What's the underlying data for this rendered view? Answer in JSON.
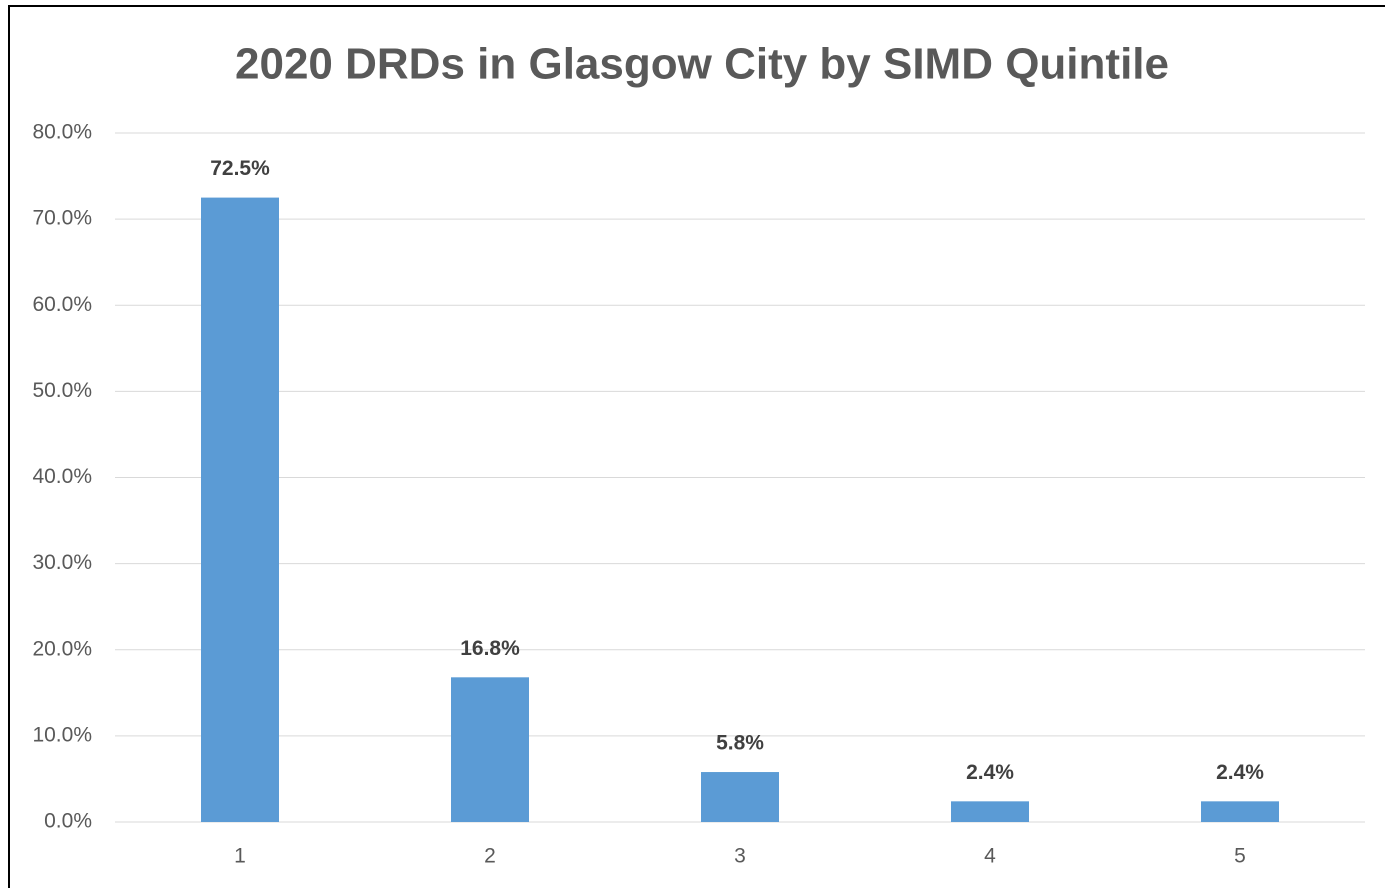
{
  "chart_data": {
    "type": "bar",
    "title": "2020 DRDs in Glasgow City by SIMD Quintile",
    "categories": [
      "1",
      "2",
      "3",
      "4",
      "5"
    ],
    "values": [
      72.5,
      16.8,
      5.8,
      2.4,
      2.4
    ],
    "value_labels": [
      "72.5%",
      "16.8%",
      "5.8%",
      "2.4%",
      "2.4%"
    ],
    "color": "#5b9bd5",
    "ylim": [
      0,
      80
    ],
    "yticks": [
      {
        "value": 0,
        "label": "0.0%"
      },
      {
        "value": 10,
        "label": "10.0%"
      },
      {
        "value": 20,
        "label": "20.0%"
      },
      {
        "value": 30,
        "label": "30.0%"
      },
      {
        "value": 40,
        "label": "40.0%"
      },
      {
        "value": 50,
        "label": "50.0%"
      },
      {
        "value": 60,
        "label": "60.0%"
      },
      {
        "value": 70,
        "label": "70.0%"
      },
      {
        "value": 80,
        "label": "80.0%"
      }
    ],
    "grid": true
  }
}
